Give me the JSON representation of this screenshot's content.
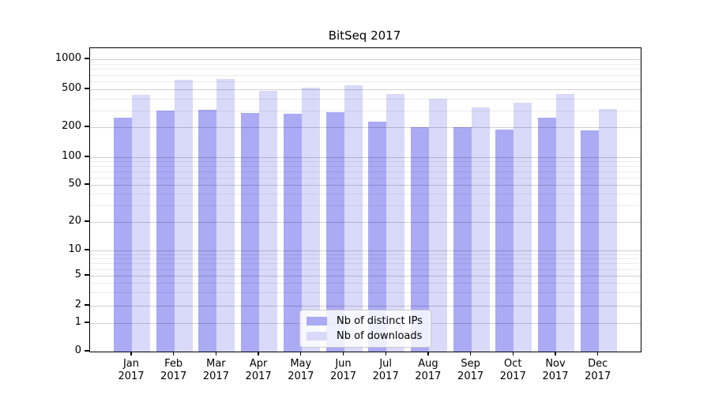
{
  "title": "BitSeq 2017",
  "colors": {
    "ip_bar": "#aaaaf5",
    "dl_bar": "#d9d9fa",
    "axis": "#000000",
    "grid_major": "rgba(0,0,0,0.18)",
    "grid_minor": "rgba(0,0,0,0.08)",
    "legend_bg": "rgba(255,255,255,0.8)",
    "legend_border": "#cccccc"
  },
  "legend": {
    "items": [
      {
        "label": "Nb of distinct IPs",
        "series": "distinct_ips"
      },
      {
        "label": "Nb of downloads",
        "series": "downloads"
      }
    ]
  },
  "y_axis": {
    "tick_labels": [
      "1000",
      "500",
      "200",
      "100",
      "50",
      "20",
      "10",
      "5",
      "2",
      "1",
      "0"
    ],
    "tick_values": [
      1000,
      500,
      200,
      100,
      50,
      20,
      10,
      5,
      2,
      1,
      0
    ]
  },
  "x_axis": {
    "tick_labels": [
      [
        "Jan",
        "2017"
      ],
      [
        "Feb",
        "2017"
      ],
      [
        "Mar",
        "2017"
      ],
      [
        "Apr",
        "2017"
      ],
      [
        "May",
        "2017"
      ],
      [
        "Jun",
        "2017"
      ],
      [
        "Jul",
        "2017"
      ],
      [
        "Aug",
        "2017"
      ],
      [
        "Sep",
        "2017"
      ],
      [
        "Oct",
        "2017"
      ],
      [
        "Nov",
        "2017"
      ],
      [
        "Dec",
        "2017"
      ]
    ]
  },
  "chart_data": {
    "type": "bar",
    "title": "BitSeq 2017",
    "categories": [
      "Jan 2017",
      "Feb 2017",
      "Mar 2017",
      "Apr 2017",
      "May 2017",
      "Jun 2017",
      "Jul 2017",
      "Aug 2017",
      "Sep 2017",
      "Oct 2017",
      "Nov 2017",
      "Dec 2017"
    ],
    "series": [
      {
        "name": "Nb of distinct IPs",
        "values": [
          250,
          300,
          305,
          280,
          275,
          290,
          230,
          200,
          200,
          190,
          250,
          185
        ]
      },
      {
        "name": "Nb of downloads",
        "values": [
          440,
          620,
          635,
          480,
          520,
          550,
          450,
          400,
          320,
          360,
          450,
          310
        ]
      }
    ],
    "xlabel": "",
    "ylabel": "",
    "yscale": "symlog",
    "y_major_ticks": [
      0,
      1,
      2,
      5,
      10,
      20,
      50,
      100,
      200,
      500,
      1000
    ],
    "y_minor_ticks": [
      3,
      4,
      6,
      7,
      8,
      9,
      30,
      40,
      60,
      70,
      80,
      90,
      300,
      400,
      600,
      700,
      800,
      900
    ],
    "ylim": [
      0,
      1350
    ],
    "grid": "both",
    "legend_position": "lower center"
  }
}
